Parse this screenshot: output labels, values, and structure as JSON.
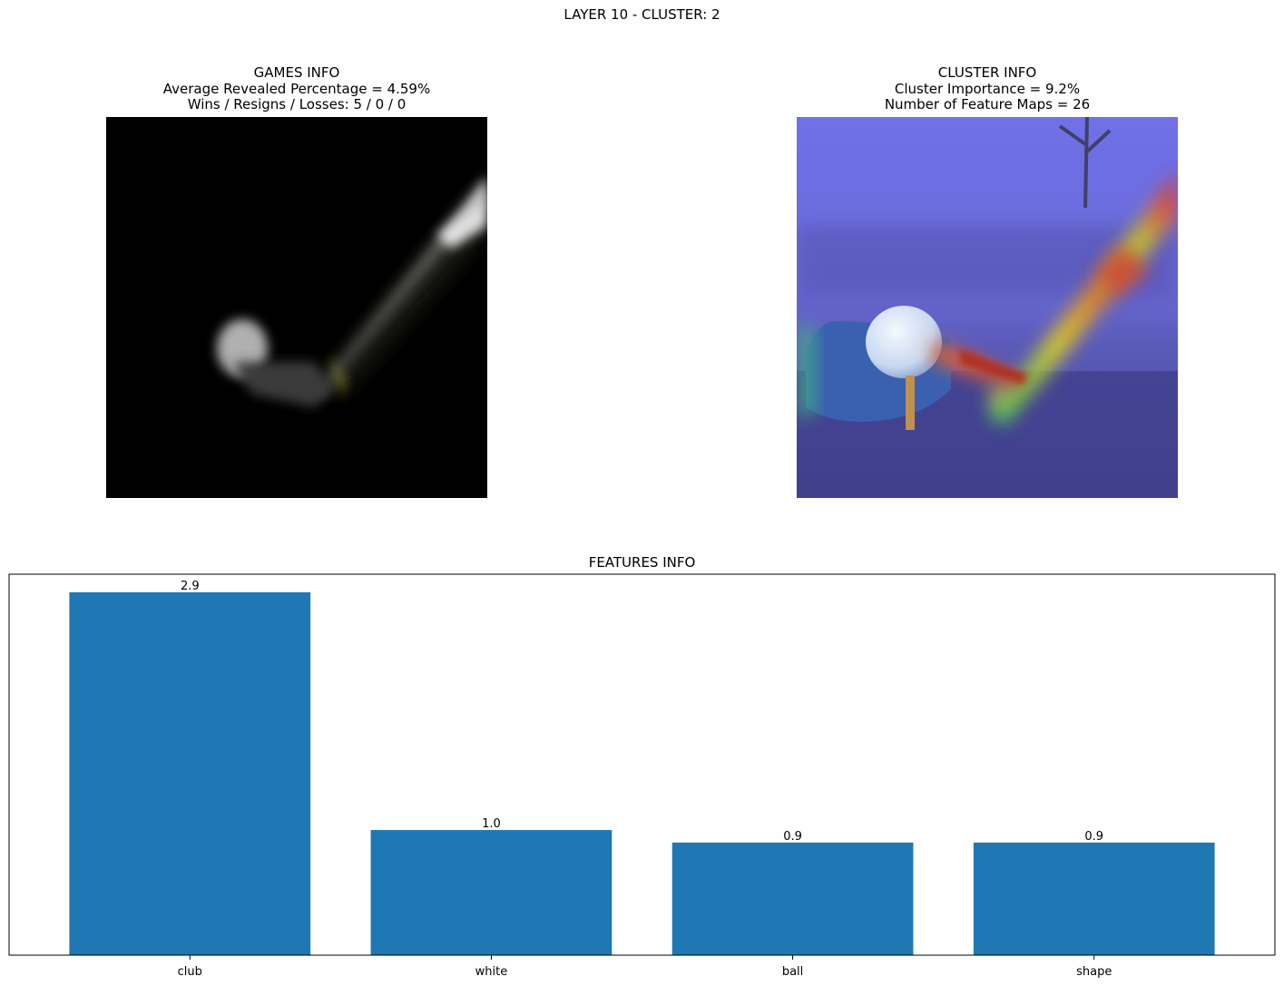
{
  "suptitle": "LAYER 10 - CLUSTER: 2",
  "games_info": {
    "title": "GAMES INFO",
    "line1": "Average Revealed Percentage = 4.59%",
    "line2": "Wins / Resigns / Losses: 5 / 0 / 0"
  },
  "cluster_info": {
    "title": "CLUSTER INFO",
    "line1": "Cluster Importance = 9.2%",
    "line2": "Number of Feature Maps = 26"
  },
  "colors": {
    "bar": "#1f77b4",
    "axes": "#000000"
  },
  "chart_data": {
    "type": "bar",
    "title": "FEATURES INFO",
    "categories": [
      "club",
      "white",
      "ball",
      "shape"
    ],
    "values": [
      2.9,
      1.0,
      0.9,
      0.9
    ],
    "data_labels": [
      "2.9",
      "1.0",
      "0.9",
      "0.9"
    ],
    "xlabel": "",
    "ylabel": "",
    "ylim": [
      0,
      3.045
    ],
    "yticks_visible": false,
    "grid": false
  }
}
